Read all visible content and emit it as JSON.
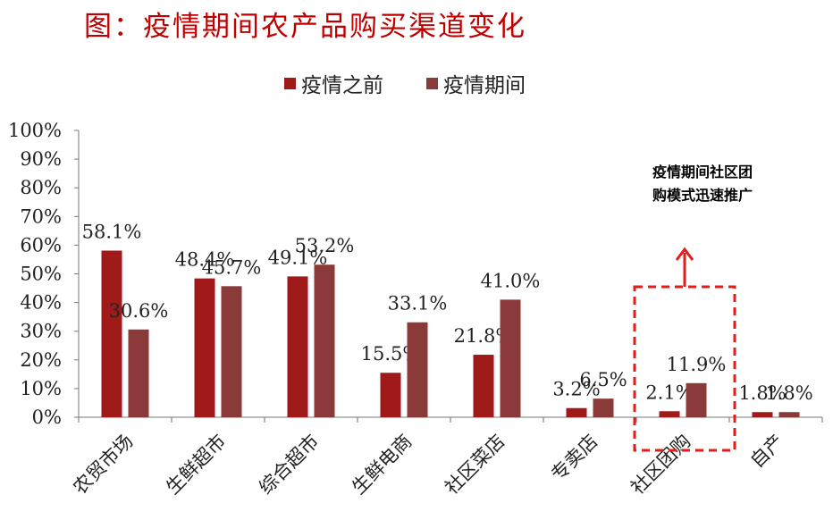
{
  "title": "图：疫情期间农产品购买渠道变化",
  "annotation": {
    "line1": "疫情期间社区团",
    "line2": "购模式迅速推广"
  },
  "colors": {
    "title": "#c00000",
    "before": "#a11a1a",
    "during": "#8b3a3a",
    "highlight_box": "#e31c1c"
  },
  "chart_data": {
    "type": "bar",
    "categories": [
      "农贸市场",
      "生鲜超市",
      "综合超市",
      "生鲜电商",
      "社区菜店",
      "专卖店",
      "社区团购",
      "自产"
    ],
    "series": [
      {
        "name": "疫情之前",
        "values": [
          58.1,
          48.4,
          49.1,
          15.5,
          21.8,
          3.2,
          2.1,
          1.8
        ],
        "labels": [
          "58.1%",
          "48.4%",
          "49.1%",
          "15.5%",
          "21.8%",
          "3.2%",
          "2.1%",
          "1.8%"
        ]
      },
      {
        "name": "疫情期间",
        "values": [
          30.6,
          45.7,
          53.2,
          33.1,
          41.0,
          6.5,
          11.9,
          1.8
        ],
        "labels": [
          "30.6%",
          "45.7%",
          "53.2%",
          "33.1%",
          "41.0%",
          "6.5%",
          "11.9%",
          "1.8%"
        ]
      }
    ],
    "ylim": [
      0,
      100
    ],
    "yticks": [
      "0%",
      "10%",
      "20%",
      "30%",
      "40%",
      "50%",
      "60%",
      "70%",
      "80%",
      "90%",
      "100%"
    ],
    "legend_position": "top",
    "grid": false,
    "highlight_category": "社区团购"
  }
}
